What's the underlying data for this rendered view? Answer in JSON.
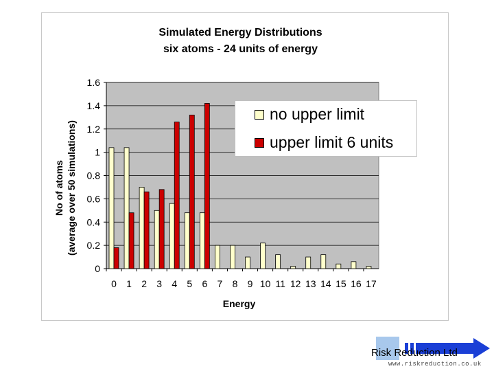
{
  "chart_data": {
    "type": "bar",
    "title": "Simulated Energy Distributions",
    "subtitle": "six atoms - 24 units of energy",
    "xlabel": "Energy",
    "ylabel_line1": "No of atoms",
    "ylabel_line2": "(average over 50 simulations)",
    "ylim": [
      0,
      1.6
    ],
    "yticks": [
      "0",
      "0.2",
      "0.4",
      "0.6",
      "0.8",
      "1",
      "1.2",
      "1.4",
      "1.6"
    ],
    "categories": [
      "0",
      "1",
      "2",
      "3",
      "4",
      "5",
      "6",
      "7",
      "8",
      "9",
      "10",
      "11",
      "12",
      "13",
      "14",
      "15",
      "16",
      "17"
    ],
    "grid": true,
    "legend_position": "top-right",
    "series": [
      {
        "name": "no upper limit",
        "color": "#ffffcc",
        "values": [
          1.04,
          1.04,
          0.7,
          0.5,
          0.56,
          0.48,
          0.48,
          0.2,
          0.2,
          0.1,
          0.22,
          0.12,
          0.02,
          0.1,
          0.12,
          0.04,
          0.06,
          0.02
        ]
      },
      {
        "name": "upper limit 6 units",
        "color": "#cc0000",
        "values": [
          0.18,
          0.48,
          0.66,
          0.68,
          1.26,
          1.32,
          1.42,
          null,
          null,
          null,
          null,
          null,
          null,
          null,
          null,
          null,
          null,
          null
        ]
      }
    ]
  },
  "logo": {
    "name": "Risk Reduction Ltd",
    "url": "www.riskreduction.co.uk"
  }
}
